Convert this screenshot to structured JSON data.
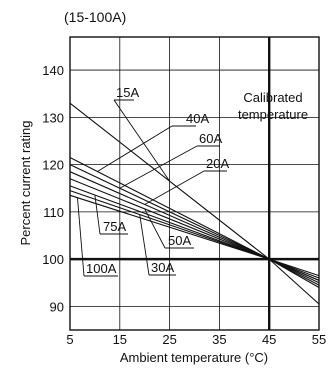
{
  "chart_data": {
    "type": "line",
    "title": "(15-100A)",
    "xlabel": "Ambient temperature (°C)",
    "ylabel": "Percent current rating",
    "xlim": [
      5,
      55
    ],
    "ylim": [
      85,
      147
    ],
    "x_ticks": [
      5,
      15,
      25,
      35,
      45,
      55
    ],
    "x_tick_labels": [
      "5",
      "15",
      "25",
      "35",
      "45",
      "55"
    ],
    "y_ticks": [
      90,
      100,
      110,
      120,
      130,
      140
    ],
    "y_tick_labels": [
      "90",
      "100",
      "110",
      "120",
      "130",
      "140"
    ],
    "grid": true,
    "series": [
      {
        "name": "15A",
        "x": [
          5,
          45,
          55
        ],
        "y": [
          133,
          100,
          90.5
        ]
      },
      {
        "name": "40A",
        "x": [
          5,
          45,
          55
        ],
        "y": [
          121.5,
          100,
          95
        ]
      },
      {
        "name": "60A",
        "x": [
          5,
          45,
          55
        ],
        "y": [
          120,
          100,
          94.5
        ]
      },
      {
        "name": "20A",
        "x": [
          5,
          45,
          55
        ],
        "y": [
          118.5,
          100,
          94
        ]
      },
      {
        "name": "50A",
        "x": [
          5,
          45,
          55
        ],
        "y": [
          117,
          100,
          95.5
        ]
      },
      {
        "name": "75A",
        "x": [
          5,
          45,
          55
        ],
        "y": [
          115.5,
          100,
          95.5
        ]
      },
      {
        "name": "30A",
        "x": [
          5,
          45,
          55
        ],
        "y": [
          114.5,
          100,
          96
        ]
      },
      {
        "name": "100A",
        "x": [
          5,
          45,
          55
        ],
        "y": [
          113.5,
          100,
          96.5
        ]
      }
    ],
    "annotations": [
      {
        "text": "Calibrated",
        "x": 44,
        "y": 136
      },
      {
        "text": "temperature",
        "x": 44,
        "y": 132
      }
    ]
  }
}
